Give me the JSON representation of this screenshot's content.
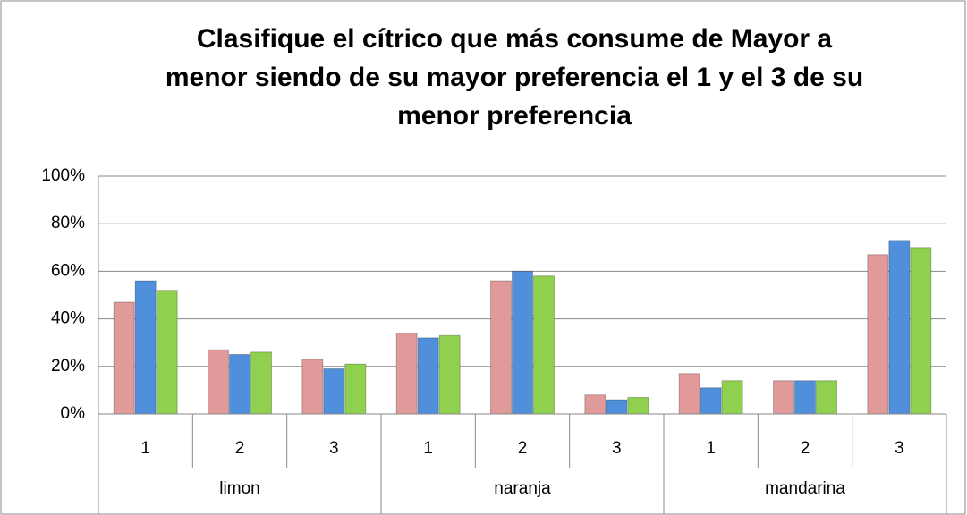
{
  "chart_data": {
    "type": "bar",
    "title": [
      "Clasifique el cítrico que más consume de Mayor a",
      "menor siendo de su mayor preferencia el 1 y el 3 de su",
      "menor preferencia"
    ],
    "groups": [
      "limon",
      "naranja",
      "mandarina"
    ],
    "categories": [
      "1",
      "2",
      "3",
      "1",
      "2",
      "3",
      "1",
      "2",
      "3"
    ],
    "series": [
      {
        "color": "#e09a99",
        "values": [
          47,
          27,
          23,
          34,
          56,
          8,
          17,
          14,
          67
        ]
      },
      {
        "color": "#4f8fdc",
        "values": [
          56,
          25,
          19,
          32,
          60,
          6,
          11,
          14,
          73
        ]
      },
      {
        "color": "#8fd14f",
        "values": [
          52,
          26,
          21,
          33,
          58,
          7,
          14,
          14,
          70
        ]
      }
    ],
    "ylim": [
      0,
      100
    ],
    "yticks": [
      {
        "value": 0,
        "label": "0%"
      },
      {
        "value": 20,
        "label": "20%"
      },
      {
        "value": 40,
        "label": "40%"
      },
      {
        "value": 60,
        "label": "60%"
      },
      {
        "value": 80,
        "label": "80%"
      },
      {
        "value": 100,
        "label": "100%"
      }
    ],
    "grid": true
  }
}
